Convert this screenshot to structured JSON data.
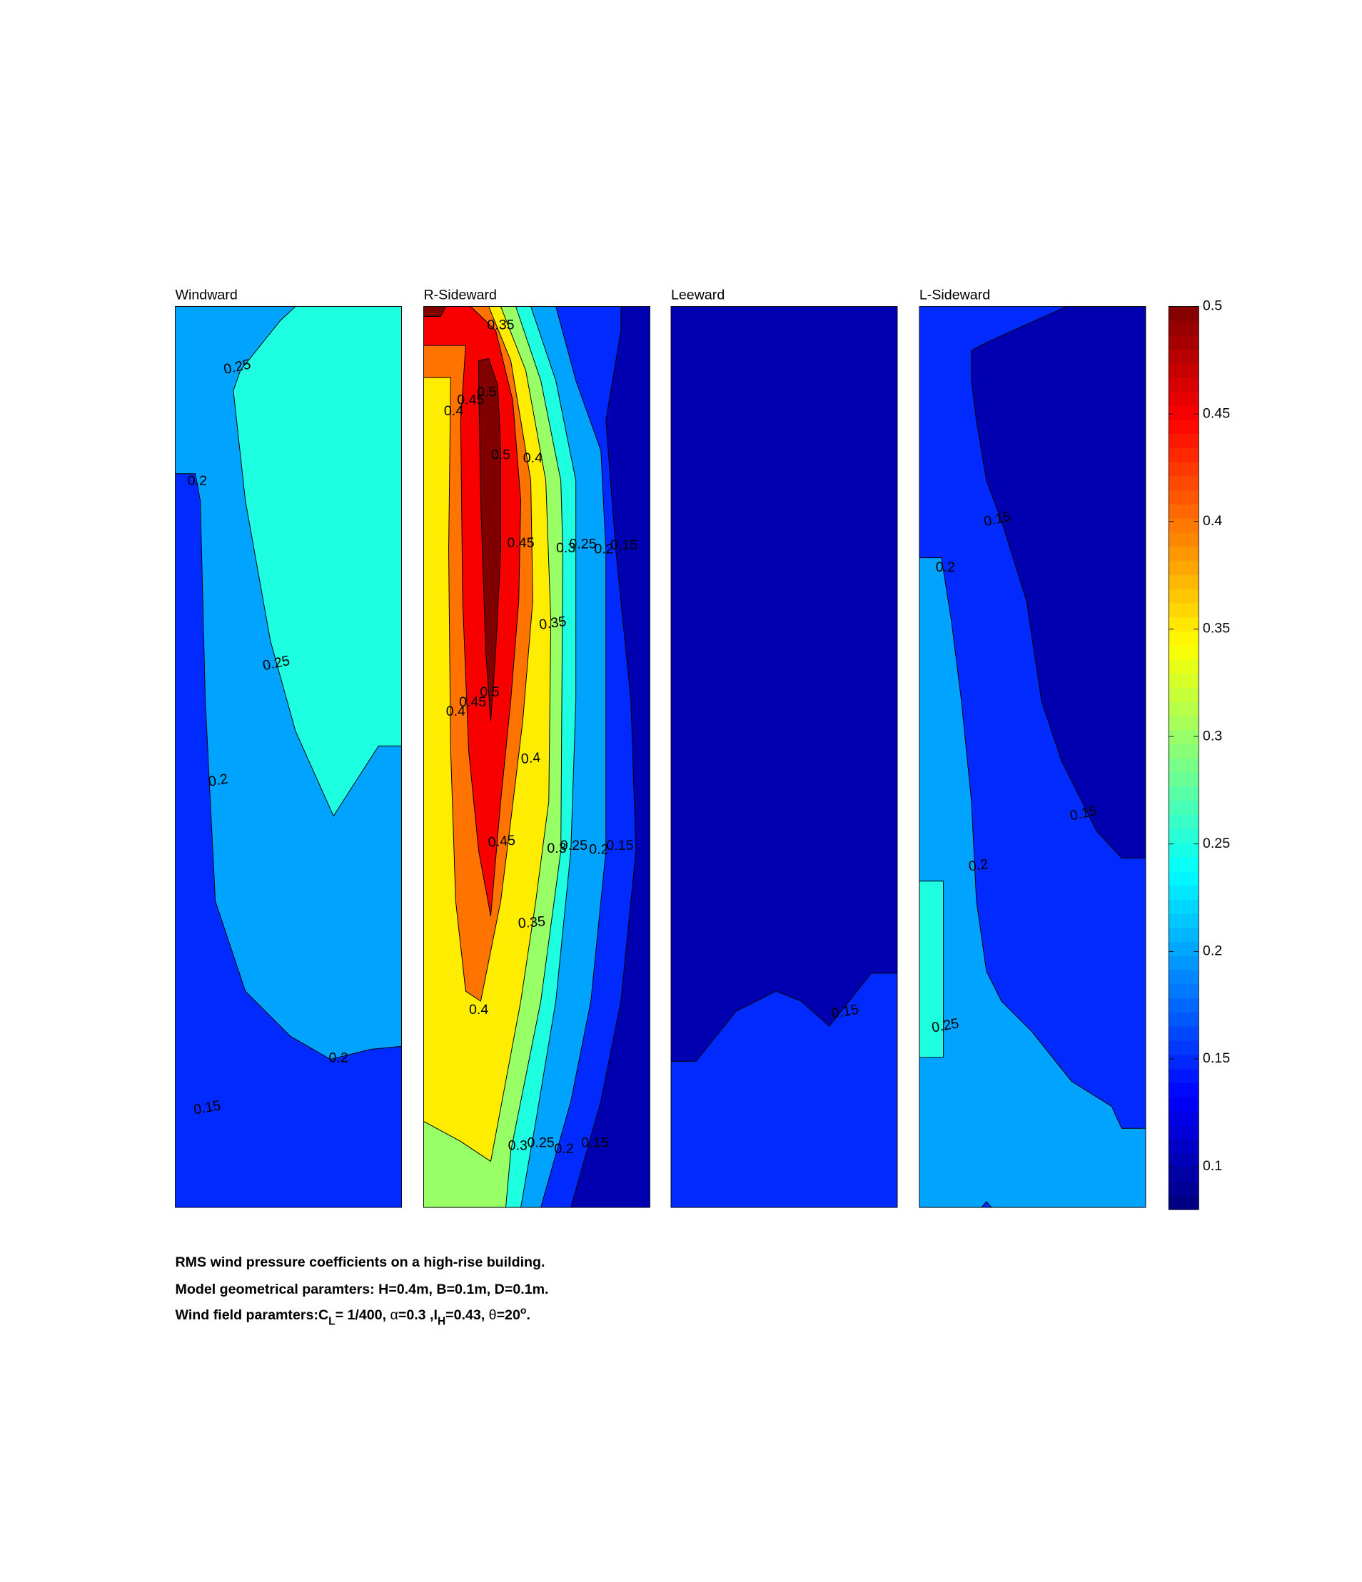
{
  "chart_data": [
    {
      "type": "contour",
      "title": "Windward",
      "contour_labels": [
        0.25,
        0.2,
        0.25,
        0.2,
        0.2,
        0.15
      ]
    },
    {
      "type": "contour",
      "title": "R-Sideward",
      "contour_labels": [
        0.35,
        0.4,
        0.45,
        0.5,
        0.5,
        0.4,
        0.45,
        0.3,
        0.25,
        0.2,
        0.15,
        0.35,
        0.4,
        0.45,
        0.5,
        0.4,
        0.45,
        0.3,
        0.25,
        0.2,
        0.15,
        0.35,
        0.4,
        0.3,
        0.25,
        0.2,
        0.15
      ]
    },
    {
      "type": "contour",
      "title": "Leeward",
      "contour_labels": [
        0.15
      ]
    },
    {
      "type": "contour",
      "title": "L-Sideward",
      "contour_labels": [
        0.15,
        0.2,
        0.15,
        0.2,
        0.25
      ]
    }
  ],
  "levels": [
    0.1,
    0.15,
    0.2,
    0.25,
    0.3,
    0.35,
    0.4,
    0.45,
    0.5
  ],
  "colorbar": {
    "colormap": "jet",
    "clim": [
      0.08,
      0.5
    ],
    "ticks": [
      0.1,
      0.15,
      0.2,
      0.25,
      0.3,
      0.35,
      0.4,
      0.45,
      0.5
    ]
  },
  "caption": {
    "line1": "RMS wind pressure coefficients on a high-rise building.",
    "line2": "Model geometrical paramters: H=0.4m, B=0.1m, D=0.1m.",
    "line3": [
      "Wind field paramters:C",
      "L",
      "= 1/400, ",
      "α",
      "=0.3 ,I",
      "H",
      "=0.43, ",
      "θ",
      "=20",
      "o",
      "."
    ]
  }
}
